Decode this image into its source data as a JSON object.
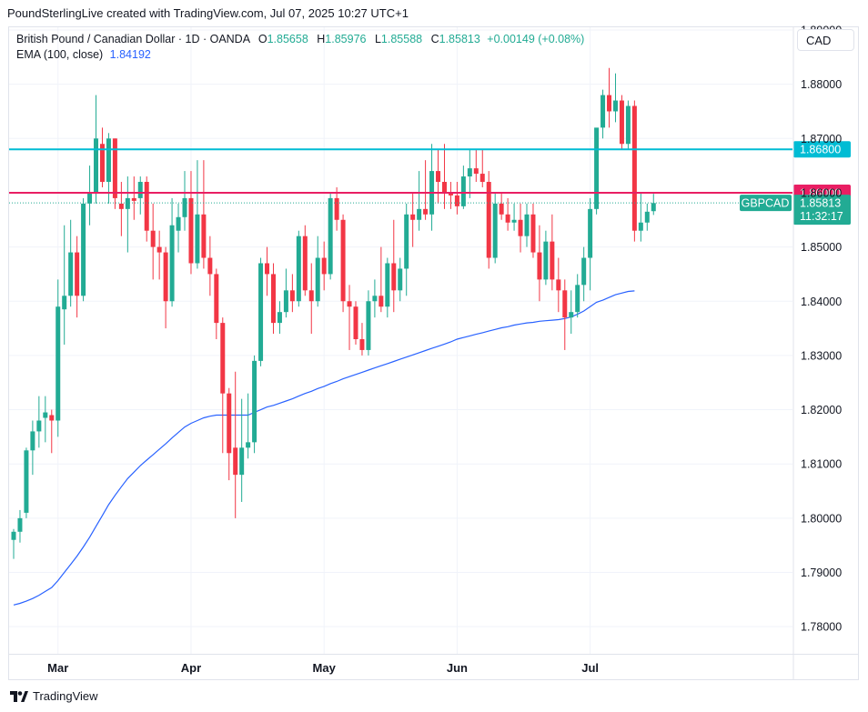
{
  "header": {
    "attribution": "PoundSterlingLive created with TradingView.com, Jul 07, 2025 10:27 UTC+1"
  },
  "legend": {
    "symbol": "British Pound / Canadian Dollar · 1D · OANDA",
    "o_label": "O",
    "open": "1.85658",
    "h_label": "H",
    "high": "1.85976",
    "l_label": "L",
    "low": "1.85588",
    "c_label": "C",
    "close": "1.85813",
    "change": "+0.00149 (+0.08%)",
    "ema_label": "EMA (100, close)",
    "ema_value": "1.84192"
  },
  "currency": "CAD",
  "footer": {
    "brand": "TradingView"
  },
  "colors": {
    "up": "#22ab94",
    "down": "#f23645",
    "ema": "#2962ff",
    "resistance": "#e91e63",
    "support": "#00bcd4"
  },
  "chart_data": {
    "type": "candlestick",
    "title": "British Pound / Canadian Dollar · 1D · OANDA",
    "ylim": [
      1.775,
      1.8905
    ],
    "y_ticks": [
      "1.78000",
      "1.79000",
      "1.80000",
      "1.81000",
      "1.82000",
      "1.83000",
      "1.84000",
      "1.85000",
      "1.86000",
      "1.87000",
      "1.88000"
    ],
    "x_ticks": [
      {
        "label": "Mar",
        "index": 7
      },
      {
        "label": "Apr",
        "index": 28
      },
      {
        "label": "May",
        "index": 49
      },
      {
        "label": "Jun",
        "index": 70
      },
      {
        "label": "Jul",
        "index": 91
      }
    ],
    "horizontal_lines": [
      {
        "value": 1.868,
        "label": "1.86800",
        "color": "#00bcd4"
      },
      {
        "value": 1.86,
        "label": "1.86000",
        "color": "#e91e63"
      }
    ],
    "last_price": {
      "value": 1.85813,
      "symbol": "GBPCAD",
      "label": "1.85813",
      "countdown": "11:32:17"
    },
    "candles": [
      [
        1.796,
        1.798,
        1.7925,
        1.7975
      ],
      [
        1.7975,
        1.8015,
        1.7955,
        1.8
      ],
      [
        1.801,
        1.813,
        1.8,
        1.8125
      ],
      [
        1.8125,
        1.818,
        1.808,
        1.816
      ],
      [
        1.816,
        1.8225,
        1.813,
        1.818
      ],
      [
        1.8185,
        1.8225,
        1.814,
        1.8195
      ],
      [
        1.819,
        1.82,
        1.812,
        1.818
      ],
      [
        1.818,
        1.844,
        1.815,
        1.839
      ],
      [
        1.8385,
        1.854,
        1.832,
        1.841
      ],
      [
        1.841,
        1.855,
        1.839,
        1.849
      ],
      [
        1.849,
        1.852,
        1.837,
        1.841
      ],
      [
        1.841,
        1.859,
        1.84,
        1.858
      ],
      [
        1.858,
        1.865,
        1.854,
        1.86
      ],
      [
        1.86,
        1.878,
        1.858,
        1.87
      ],
      [
        1.869,
        1.872,
        1.861,
        1.862
      ],
      [
        1.862,
        1.871,
        1.858,
        1.87
      ],
      [
        1.87,
        1.87,
        1.857,
        1.859
      ],
      [
        1.858,
        1.862,
        1.852,
        1.857
      ],
      [
        1.857,
        1.863,
        1.849,
        1.859
      ],
      [
        1.859,
        1.863,
        1.855,
        1.8585
      ],
      [
        1.859,
        1.863,
        1.856,
        1.862
      ],
      [
        1.862,
        1.863,
        1.851,
        1.853
      ],
      [
        1.853,
        1.858,
        1.844,
        1.85
      ],
      [
        1.85,
        1.853,
        1.844,
        1.849
      ],
      [
        1.849,
        1.85,
        1.835,
        1.84
      ],
      [
        1.84,
        1.859,
        1.839,
        1.854
      ],
      [
        1.853,
        1.858,
        1.849,
        1.8555
      ],
      [
        1.8555,
        1.864,
        1.853,
        1.859
      ],
      [
        1.859,
        1.864,
        1.845,
        1.847
      ],
      [
        1.847,
        1.866,
        1.846,
        1.856
      ],
      [
        1.856,
        1.866,
        1.846,
        1.848
      ],
      [
        1.848,
        1.852,
        1.841,
        1.845
      ],
      [
        1.845,
        1.846,
        1.833,
        1.836
      ],
      [
        1.836,
        1.837,
        1.812,
        1.823
      ],
      [
        1.823,
        1.824,
        1.807,
        1.812
      ],
      [
        1.813,
        1.827,
        1.8,
        1.808
      ],
      [
        1.808,
        1.822,
        1.803,
        1.813
      ],
      [
        1.813,
        1.823,
        1.811,
        1.814
      ],
      [
        1.814,
        1.83,
        1.812,
        1.829
      ],
      [
        1.829,
        1.848,
        1.828,
        1.847
      ],
      [
        1.847,
        1.85,
        1.841,
        1.845
      ],
      [
        1.845,
        1.847,
        1.834,
        1.836
      ],
      [
        1.836,
        1.84,
        1.834,
        1.838
      ],
      [
        1.838,
        1.846,
        1.837,
        1.842
      ],
      [
        1.842,
        1.845,
        1.838,
        1.84
      ],
      [
        1.84,
        1.853,
        1.839,
        1.852
      ],
      [
        1.852,
        1.854,
        1.841,
        1.842
      ],
      [
        1.842,
        1.847,
        1.834,
        1.84
      ],
      [
        1.84,
        1.852,
        1.839,
        1.848
      ],
      [
        1.848,
        1.851,
        1.842,
        1.845
      ],
      [
        1.845,
        1.86,
        1.844,
        1.859
      ],
      [
        1.859,
        1.861,
        1.853,
        1.855
      ],
      [
        1.855,
        1.856,
        1.838,
        1.84
      ],
      [
        1.84,
        1.843,
        1.831,
        1.839
      ],
      [
        1.839,
        1.84,
        1.832,
        1.833
      ],
      [
        1.833,
        1.836,
        1.83,
        1.831
      ],
      [
        1.831,
        1.842,
        1.83,
        1.84
      ],
      [
        1.84,
        1.844,
        1.837,
        1.841
      ],
      [
        1.841,
        1.85,
        1.838,
        1.839
      ],
      [
        1.839,
        1.848,
        1.837,
        1.847
      ],
      [
        1.847,
        1.855,
        1.838,
        1.842
      ],
      [
        1.842,
        1.848,
        1.84,
        1.846
      ],
      [
        1.846,
        1.858,
        1.841,
        1.856
      ],
      [
        1.856,
        1.86,
        1.85,
        1.855
      ],
      [
        1.855,
        1.864,
        1.853,
        1.857
      ],
      [
        1.857,
        1.866,
        1.855,
        1.856
      ],
      [
        1.856,
        1.869,
        1.853,
        1.864
      ],
      [
        1.864,
        1.868,
        1.858,
        1.862
      ],
      [
        1.862,
        1.869,
        1.857,
        1.86
      ],
      [
        1.86,
        1.862,
        1.857,
        1.8595
      ],
      [
        1.8595,
        1.862,
        1.856,
        1.8575
      ],
      [
        1.8575,
        1.865,
        1.857,
        1.863
      ],
      [
        1.863,
        1.868,
        1.859,
        1.8645
      ],
      [
        1.8645,
        1.868,
        1.862,
        1.8635
      ],
      [
        1.8635,
        1.868,
        1.861,
        1.862
      ],
      [
        1.862,
        1.864,
        1.846,
        1.848
      ],
      [
        1.848,
        1.86,
        1.847,
        1.858
      ],
      [
        1.858,
        1.86,
        1.855,
        1.856
      ],
      [
        1.856,
        1.859,
        1.853,
        1.8545
      ],
      [
        1.8545,
        1.858,
        1.853,
        1.855
      ],
      [
        1.855,
        1.858,
        1.849,
        1.852
      ],
      [
        1.852,
        1.858,
        1.85,
        1.856
      ],
      [
        1.856,
        1.858,
        1.848,
        1.849
      ],
      [
        1.849,
        1.854,
        1.84,
        1.844
      ],
      [
        1.844,
        1.853,
        1.843,
        1.851
      ],
      [
        1.851,
        1.856,
        1.842,
        1.844
      ],
      [
        1.844,
        1.848,
        1.838,
        1.842
      ],
      [
        1.842,
        1.844,
        1.831,
        1.837
      ],
      [
        1.837,
        1.842,
        1.834,
        1.838
      ],
      [
        1.838,
        1.845,
        1.837,
        1.843
      ],
      [
        1.843,
        1.85,
        1.84,
        1.848
      ],
      [
        1.848,
        1.859,
        1.842,
        1.857
      ],
      [
        1.857,
        1.871,
        1.856,
        1.872
      ],
      [
        1.872,
        1.879,
        1.87,
        1.878
      ],
      [
        1.878,
        1.883,
        1.872,
        1.875
      ],
      [
        1.875,
        1.882,
        1.873,
        1.877
      ],
      [
        1.877,
        1.878,
        1.868,
        1.869
      ],
      [
        1.869,
        1.877,
        1.868,
        1.876
      ],
      [
        1.876,
        1.877,
        1.851,
        1.853
      ],
      [
        1.853,
        1.86,
        1.851,
        1.8545
      ],
      [
        1.8545,
        1.858,
        1.853,
        1.8565
      ],
      [
        1.8566,
        1.8598,
        1.8559,
        1.8581
      ]
    ],
    "ema": [
      1.784,
      1.7843,
      1.7847,
      1.7852,
      1.7858,
      1.7865,
      1.7872,
      1.7885,
      1.79,
      1.7915,
      1.793,
      1.7947,
      1.7965,
      1.7985,
      1.8005,
      1.8025,
      1.8042,
      1.8058,
      1.8073,
      1.8085,
      1.8097,
      1.8107,
      1.8117,
      1.8127,
      1.8137,
      1.8148,
      1.8158,
      1.8168,
      1.8175,
      1.818,
      1.8185,
      1.8188,
      1.819,
      1.819,
      1.819,
      1.819,
      1.819,
      1.819,
      1.8195,
      1.82,
      1.8205,
      1.8208,
      1.8212,
      1.8216,
      1.822,
      1.8225,
      1.823,
      1.8234,
      1.8239,
      1.8243,
      1.8248,
      1.8252,
      1.8257,
      1.8261,
      1.8265,
      1.8269,
      1.8273,
      1.8277,
      1.8281,
      1.8285,
      1.8289,
      1.8293,
      1.8297,
      1.8301,
      1.8305,
      1.8309,
      1.8313,
      1.8317,
      1.8321,
      1.8325,
      1.833,
      1.8333,
      1.8336,
      1.8339,
      1.8342,
      1.8345,
      1.8348,
      1.8351,
      1.8353,
      1.8356,
      1.8358,
      1.836,
      1.8361,
      1.8363,
      1.8364,
      1.8365,
      1.8366,
      1.8368,
      1.8371,
      1.8376,
      1.8382,
      1.839,
      1.8398,
      1.8402,
      1.8407,
      1.8412,
      1.8415,
      1.8418,
      1.8419
    ]
  }
}
